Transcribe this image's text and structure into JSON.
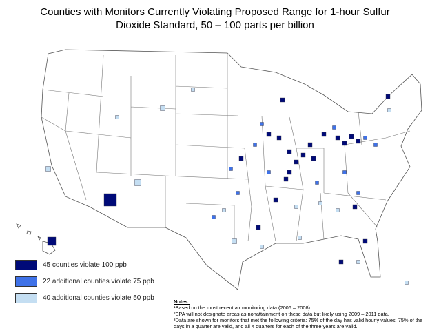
{
  "title": [
    "Counties with Monitors Currently Violating Proposed Range for 1-hour Sulfur",
    "Dioxide Standard, 50 – 100 parts per billion"
  ],
  "legend": [
    {
      "label": "45 counties violate 100 ppb",
      "color": "#000a78"
    },
    {
      "label": "22 additional counties violate 75 ppb",
      "color": "#3f72e8"
    },
    {
      "label": "40 additional counties violate 50 ppb",
      "color": "#c4def2"
    }
  ],
  "notes": {
    "heading": "Notes:",
    "items": [
      "¹Based on the most recent air monitoring data (2006 – 2008).",
      "²EPA will not designate areas as nonattainment on these data but likely using  2009 – 2011 data.",
      "³Data are shown for monitors that met the following criteria:  75% of the day has valid hourly values, 75% of the days in a quarter are valid, and all 4 quarters for each of the three years are valid."
    ]
  }
}
